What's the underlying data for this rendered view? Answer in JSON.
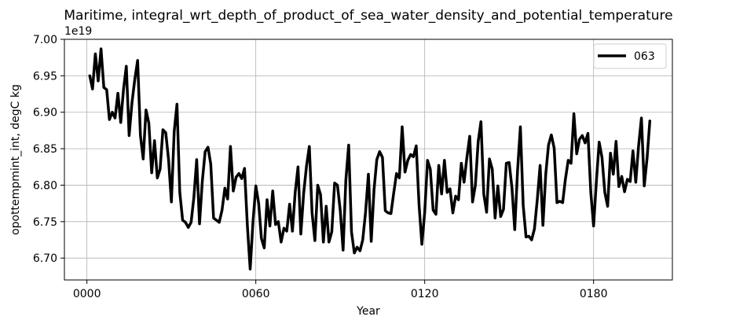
{
  "chart_data": {
    "type": "line",
    "title": "Maritime, integral_wrt_depth_of_product_of_sea_water_density_and_potential_temperature",
    "xlabel": "Year",
    "ylabel": "opottempmint_int, degC kg",
    "offset_text": "1e19",
    "xlim": [
      -8,
      208
    ],
    "ylim": [
      6.67,
      7.0
    ],
    "x_ticks": [
      0,
      60,
      120,
      180
    ],
    "x_tick_labels": [
      "0000",
      "0060",
      "0120",
      "0180"
    ],
    "y_ticks": [
      6.7,
      6.75,
      6.8,
      6.85,
      6.9,
      6.95,
      7.0
    ],
    "y_tick_labels": [
      "6.70",
      "6.75",
      "6.80",
      "6.85",
      "6.90",
      "6.95",
      "7.00"
    ],
    "grid": true,
    "legend_position": "top-right",
    "series": [
      {
        "name": "063",
        "color": "#000000",
        "x_start": 1,
        "values": [
          6.95,
          6.932,
          6.98,
          6.943,
          6.987,
          6.934,
          6.931,
          6.89,
          6.9,
          6.892,
          6.926,
          6.886,
          6.932,
          6.963,
          6.868,
          6.913,
          6.945,
          6.971,
          6.868,
          6.836,
          6.903,
          6.885,
          6.817,
          6.861,
          6.81,
          6.822,
          6.876,
          6.872,
          6.835,
          6.777,
          6.874,
          6.911,
          6.79,
          6.752,
          6.749,
          6.742,
          6.749,
          6.783,
          6.835,
          6.747,
          6.806,
          6.846,
          6.852,
          6.829,
          6.755,
          6.752,
          6.749,
          6.766,
          6.796,
          6.781,
          6.853,
          6.792,
          6.811,
          6.816,
          6.809,
          6.823,
          6.745,
          6.685,
          6.75,
          6.799,
          6.775,
          6.727,
          6.714,
          6.78,
          6.744,
          6.792,
          6.746,
          6.75,
          6.722,
          6.741,
          6.737,
          6.774,
          6.737,
          6.79,
          6.825,
          6.733,
          6.789,
          6.826,
          6.853,
          6.762,
          6.724,
          6.8,
          6.787,
          6.722,
          6.771,
          6.722,
          6.736,
          6.803,
          6.8,
          6.765,
          6.711,
          6.807,
          6.855,
          6.736,
          6.707,
          6.715,
          6.71,
          6.725,
          6.763,
          6.815,
          6.723,
          6.794,
          6.835,
          6.846,
          6.838,
          6.765,
          6.762,
          6.761,
          6.789,
          6.816,
          6.81,
          6.88,
          6.818,
          6.834,
          6.842,
          6.839,
          6.854,
          6.773,
          6.719,
          6.763,
          6.834,
          6.822,
          6.766,
          6.76,
          6.827,
          6.788,
          6.834,
          6.79,
          6.795,
          6.762,
          6.785,
          6.78,
          6.83,
          6.804,
          6.838,
          6.867,
          6.777,
          6.8,
          6.86,
          6.887,
          6.788,
          6.763,
          6.836,
          6.822,
          6.755,
          6.799,
          6.757,
          6.767,
          6.83,
          6.831,
          6.796,
          6.739,
          6.82,
          6.88,
          6.772,
          6.729,
          6.73,
          6.725,
          6.74,
          6.78,
          6.827,
          6.745,
          6.815,
          6.855,
          6.869,
          6.851,
          6.776,
          6.778,
          6.776,
          6.808,
          6.834,
          6.83,
          6.898,
          6.843,
          6.863,
          6.868,
          6.858,
          6.871,
          6.791,
          6.744,
          6.806,
          6.859,
          6.838,
          6.79,
          6.771,
          6.844,
          6.815,
          6.86,
          6.798,
          6.812,
          6.791,
          6.808,
          6.805,
          6.847,
          6.804,
          6.854,
          6.892,
          6.799,
          6.837,
          6.888
        ]
      }
    ]
  }
}
